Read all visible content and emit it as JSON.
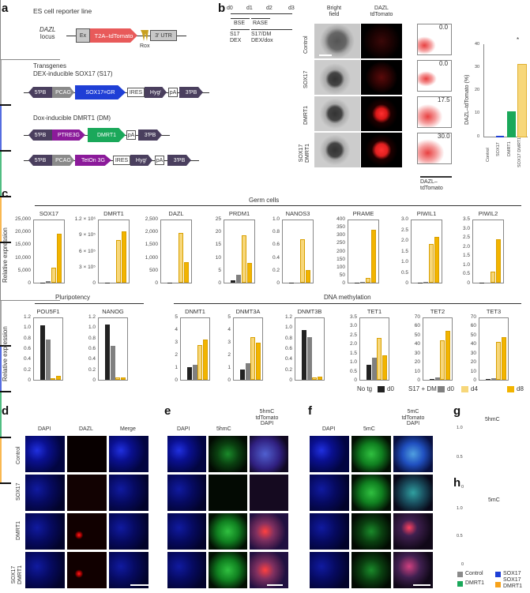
{
  "panels": {
    "a": {
      "label": "a",
      "reporter_title": "ES cell reporter line",
      "locus_label_italic": "DAZL",
      "locus_label": "locus",
      "reporter_segments": [
        "Ex",
        "T2A–tdTomato",
        "3′ UTR"
      ],
      "rox_label": "Rox",
      "transgenes_title": "Transgenes",
      "sox17_title": "DEX-inducible SOX17 (S17)",
      "sox17_segments": [
        "5′PB",
        "PCAG",
        "SOX17=GR",
        "IRES",
        "Hygʳ",
        "pA",
        "3′PB"
      ],
      "dmrt1_title": "Dox-inducible DMRT1 (DM)",
      "dmrt1_segments": [
        "5′PB",
        "PTRE3G",
        "DMRT1",
        "pA",
        "3′PB"
      ],
      "teton_segments": [
        "5′PB",
        "PCAG",
        "TetOn 3G",
        "IRES",
        "Hygʳ",
        "pA",
        "3′PB"
      ]
    },
    "b": {
      "label": "b",
      "timeline": {
        "days": [
          "d0",
          "d1",
          "d2",
          "d3"
        ],
        "media": [
          "BSE",
          "RASE"
        ],
        "treatments": [
          "S17\nDEX",
          "S17/DM\nDEX/dox"
        ]
      },
      "column_headers": [
        "Bright\nfield",
        "DAZL\ntdTomato"
      ],
      "row_labels": [
        "Control",
        "SOX17",
        "DMRT1",
        "SOX17\nDMRT1"
      ],
      "flow_values": [
        "0.0",
        "0.0",
        "17.5",
        "30.0"
      ],
      "flow_xlabel": "DAZL–\ntdTomato"
    },
    "c": {
      "label": "c",
      "group_germ": "Germ cells",
      "group_pluri": "Pluripotency",
      "group_dna": "DNA methylation",
      "ylabel": "Relative expression",
      "legend": {
        "notg": "No tg",
        "s17dm": "S17 + DM",
        "items": [
          "d0",
          "d0",
          "d4",
          "d8"
        ]
      }
    },
    "d": {
      "label": "d",
      "column_headers": [
        "DAPI",
        "DAZL",
        "Merge"
      ],
      "row_labels": [
        "Control",
        "SOX17",
        "DMRT1",
        "SOX17\nDMRT1"
      ]
    },
    "e": {
      "label": "e",
      "column_headers": [
        "DAPI",
        "5hmC",
        "5hmC\ntdTomato\nDAPI"
      ]
    },
    "f": {
      "label": "f",
      "column_headers": [
        "DAPI",
        "5mC",
        "5mC\ntdTomato\nDAPI"
      ]
    },
    "g": {
      "label": "g",
      "title": "5hmC"
    },
    "h": {
      "label": "h",
      "title": "5mC"
    },
    "gh_legend": [
      "Control",
      "SOX17",
      "DMRT1",
      "SOX17\nDMRT1"
    ]
  },
  "colors": {
    "notg_d0": "#222222",
    "s17dm_d0": "#808080",
    "d4": "#f7d77a",
    "d8": "#f2b400",
    "control": "#8a8a8a",
    "sox17": "#1f3fd6",
    "dmrt1": "#1aa85a",
    "sox17dmrt1": "#f7a21b",
    "tdtomato": "#e85a5a",
    "sox17gr": "#1f3fd6",
    "ptre3g": "#8b1a9a",
    "pb": "#4a3f5e",
    "pcag": "#8a8a8a"
  },
  "chart_data": [
    {
      "id": "b-bar",
      "type": "bar",
      "title": "",
      "categories": [
        "Control",
        "SOX17",
        "DMRT1",
        "SOX17 DMRT1"
      ],
      "values": [
        0.1,
        0.3,
        11.2,
        31.8
      ],
      "errors": [
        0.1,
        0.2,
        3.5,
        3.2
      ],
      "ylabel": "DAZL–tdTomato (%)",
      "yticks": [
        0,
        5,
        10,
        15,
        20,
        25,
        30,
        35,
        40
      ],
      "ylim": [
        0,
        40
      ],
      "annotation": "*"
    },
    {
      "id": "c-genes",
      "type": "bar",
      "categories": [
        "No tg d0",
        "S17+DM d0",
        "S17+DM d4",
        "S17+DM d8"
      ],
      "ylabel": "Relative expression",
      "genes": [
        {
          "name": "SOX17",
          "group": "Germ cells",
          "yticks": [
            "0",
            "5,000",
            "10,000",
            "15,000",
            "20,000",
            "25,000"
          ],
          "ylim": [
            0,
            25000
          ],
          "values": [
            0,
            700,
            5800,
            19200
          ]
        },
        {
          "name": "DMRT1",
          "group": "Germ cells",
          "yticks": [
            "0",
            "3 × 10⁵",
            "6 × 10⁵",
            "9 × 10⁵",
            "1.2 × 10⁶"
          ],
          "ylim": [
            0,
            1200000
          ],
          "values": [
            0,
            0,
            800000,
            970000
          ]
        },
        {
          "name": "DAZL",
          "group": "Germ cells",
          "yticks": [
            "0",
            "500",
            "1,000",
            "1,500",
            "2,000",
            "2,500"
          ],
          "ylim": [
            0,
            2500
          ],
          "values": [
            0,
            0,
            1930,
            800
          ]
        },
        {
          "name": "PRDM1",
          "group": "Germ cells",
          "yticks": [
            "0",
            "5",
            "10",
            "15",
            "20",
            "25"
          ],
          "ylim": [
            0,
            25
          ],
          "values": [
            1,
            3.2,
            18.5,
            7.7
          ]
        },
        {
          "name": "NANOS3",
          "group": "Germ cells",
          "yticks": [
            "0",
            "0.2",
            "0.4",
            "0.6",
            "0.8",
            "1.0"
          ],
          "ylim": [
            0,
            1.0
          ],
          "values": [
            0,
            0,
            0.68,
            0.2
          ]
        },
        {
          "name": "PRAME",
          "group": "Germ cells",
          "yticks": [
            "0",
            "50",
            "100",
            "150",
            "200",
            "250",
            "300",
            "350",
            "400"
          ],
          "ylim": [
            0,
            400
          ],
          "values": [
            1,
            6,
            28,
            333
          ]
        },
        {
          "name": "PIWIL1",
          "group": "Germ cells",
          "yticks": [
            "0",
            "0.5",
            "1.0",
            "1.5",
            "2.0",
            "2.5",
            "3.0"
          ],
          "ylim": [
            0,
            3.0
          ],
          "values": [
            0,
            0.03,
            1.82,
            2.15
          ]
        },
        {
          "name": "PIWIL2",
          "group": "Germ cells",
          "yticks": [
            "0",
            "0.5",
            "1.0",
            "1.5",
            "2.0",
            "2.5",
            "3.0",
            "3.5"
          ],
          "ylim": [
            0,
            3.5
          ],
          "values": [
            0,
            0.02,
            0.6,
            2.37
          ]
        },
        {
          "name": "POU5F1",
          "group": "Pluripotency",
          "yticks": [
            "0",
            "0.2",
            "0.4",
            "0.6",
            "0.8",
            "1.0",
            "1.2"
          ],
          "ylim": [
            0,
            1.2
          ],
          "values": [
            1.03,
            0.76,
            0.02,
            0.07
          ]
        },
        {
          "name": "NANOG",
          "group": "Pluripotency",
          "yticks": [
            "0",
            "0.2",
            "0.4",
            "0.6",
            "0.8",
            "1.0",
            "1.2"
          ],
          "ylim": [
            0,
            1.2
          ],
          "values": [
            1.05,
            0.65,
            0.04,
            0.04
          ]
        },
        {
          "name": "DNMT1",
          "group": "DNA methylation",
          "yticks": [
            "0",
            "1",
            "2",
            "3",
            "4",
            "5"
          ],
          "ylim": [
            0,
            5
          ],
          "values": [
            1.0,
            1.2,
            2.75,
            3.2
          ]
        },
        {
          "name": "DNMT3A",
          "group": "DNA methylation",
          "yticks": [
            "0",
            "1",
            "2",
            "3",
            "4",
            "5"
          ],
          "ylim": [
            0,
            5
          ],
          "values": [
            0.83,
            1.33,
            3.4,
            2.95
          ]
        },
        {
          "name": "DNMT3B",
          "group": "DNA methylation",
          "yticks": [
            "0",
            "0.2",
            "0.4",
            "0.6",
            "0.8",
            "1.0",
            "1.2"
          ],
          "ylim": [
            0,
            1.2
          ],
          "values": [
            0.94,
            0.81,
            0.05,
            0.06
          ]
        },
        {
          "name": "TET1",
          "group": "DNA methylation",
          "yticks": [
            "0",
            "0.5",
            "1.0",
            "1.5",
            "2.0",
            "2.5",
            "3.0",
            "3.5"
          ],
          "ylim": [
            0,
            3.5
          ],
          "values": [
            0.85,
            1.22,
            2.3,
            1.37
          ]
        },
        {
          "name": "TET2",
          "group": "DNA methylation",
          "yticks": [
            "0",
            "10",
            "20",
            "30",
            "40",
            "50",
            "60",
            "70"
          ],
          "ylim": [
            0,
            70
          ],
          "values": [
            0.8,
            2.5,
            43.5,
            54
          ]
        },
        {
          "name": "TET3",
          "group": "DNA methylation",
          "yticks": [
            "0",
            "10",
            "20",
            "30",
            "40",
            "50",
            "60",
            "70"
          ],
          "ylim": [
            0,
            70
          ],
          "values": [
            1,
            1.5,
            42,
            47
          ]
        }
      ],
      "legend": [
        "No tg d0",
        "S17 + DM d0",
        "d4",
        "d8"
      ]
    },
    {
      "id": "g",
      "type": "scatter",
      "title": "5hmC",
      "categories": [
        "Control",
        "SOX17",
        "DMRT1",
        "SOX17 DMRT1"
      ],
      "medians": [
        0.14,
        0.11,
        0.24,
        0.18
      ],
      "max": [
        0.55,
        0.55,
        1.0,
        0.75
      ],
      "yticks": [
        0,
        0.5,
        1.0
      ],
      "ylim": [
        0,
        1.0
      ]
    },
    {
      "id": "h",
      "type": "scatter",
      "title": "5mC",
      "categories": [
        "Control",
        "SOX17",
        "DMRT1",
        "SOX17 DMRT1"
      ],
      "medians": [
        0.24,
        0.25,
        0.17,
        0.13
      ],
      "max": [
        1.0,
        1.0,
        0.5,
        0.55
      ],
      "yticks": [
        0,
        0.5,
        1.0
      ],
      "ylim": [
        0,
        1.0
      ]
    }
  ]
}
